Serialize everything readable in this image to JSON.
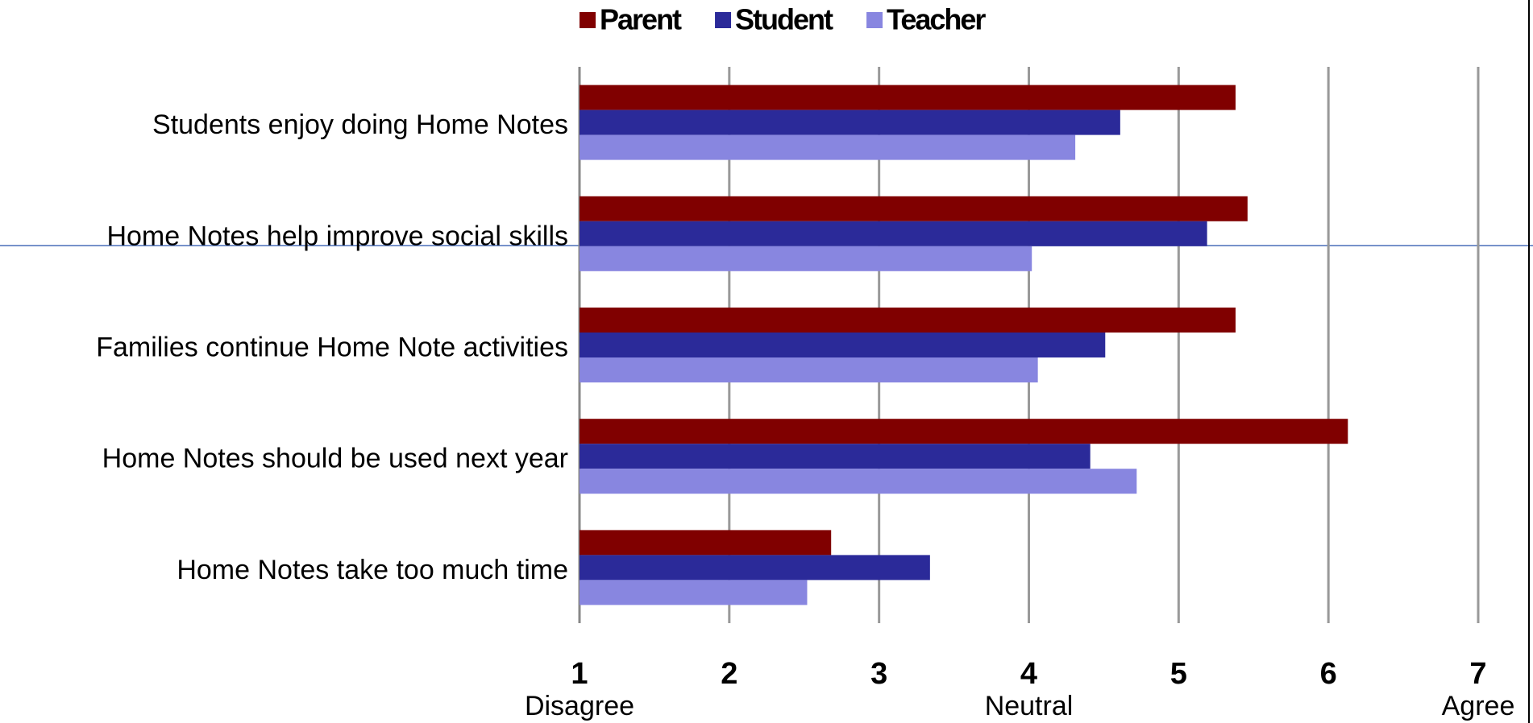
{
  "chart_data": {
    "type": "barh",
    "categories": [
      "Students enjoy doing Home Notes",
      "Home Notes help improve social skills",
      "Families continue Home Note activities",
      "Home Notes should be used next year",
      "Home Notes take too much time"
    ],
    "series": [
      {
        "name": "Parent",
        "color": "#800000",
        "values": [
          5.38,
          5.46,
          5.38,
          6.13,
          2.68
        ]
      },
      {
        "name": "Student",
        "color": "#2b2a99",
        "values": [
          4.61,
          5.19,
          4.51,
          4.41,
          3.34
        ]
      },
      {
        "name": "Teacher",
        "color": "#8886e0",
        "values": [
          4.31,
          4.02,
          4.06,
          4.72,
          2.52
        ]
      }
    ],
    "xlim": [
      1,
      7
    ],
    "xticks": [
      1,
      2,
      3,
      4,
      5,
      6,
      7
    ],
    "x_annotations": [
      {
        "text": "Disagree",
        "x": 1
      },
      {
        "text": "Neutral",
        "x": 4
      },
      {
        "text": "Agree",
        "x": 7
      }
    ],
    "grid": true,
    "legend": "top"
  }
}
